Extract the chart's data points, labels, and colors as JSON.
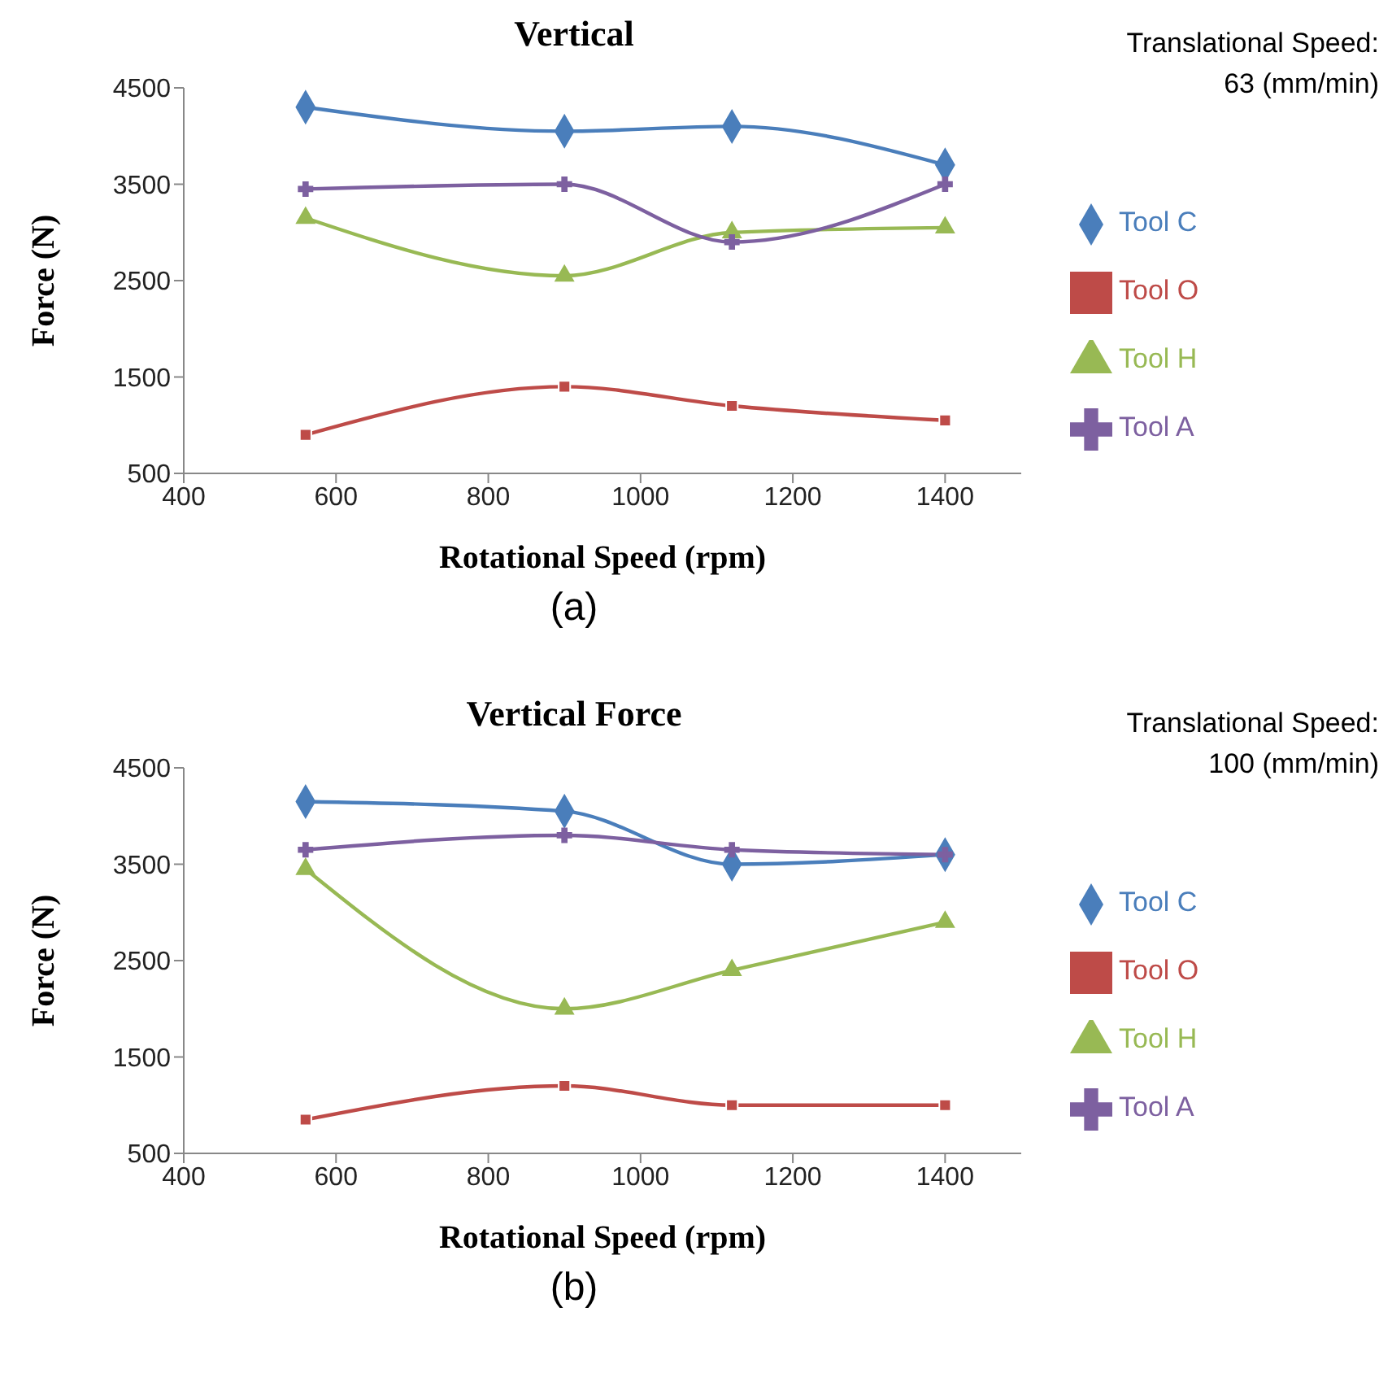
{
  "chart_data": [
    {
      "type": "line",
      "title": "Vertical",
      "xlabel": "Rotational Speed (rpm)",
      "ylabel": "Force (N)",
      "annotations": [
        "Translational Speed: 63 (mm/min)",
        "(a)"
      ],
      "x": [
        560,
        900,
        1120,
        1400
      ],
      "xlim": [
        400,
        1500
      ],
      "xticks": [
        400,
        600,
        800,
        1000,
        1200,
        1400
      ],
      "ylim": [
        500,
        4500
      ],
      "yticks": [
        500,
        1500,
        2500,
        3500,
        4500
      ],
      "grid": false,
      "legend": "right",
      "series": [
        {
          "name": "Tool C",
          "color": "#4a7ebb",
          "marker": "diamond",
          "values": [
            4300,
            4050,
            4100,
            3700
          ]
        },
        {
          "name": "Tool O",
          "color": "#be4b48",
          "marker": "square",
          "values": [
            900,
            1400,
            1200,
            1050
          ]
        },
        {
          "name": "Tool H",
          "color": "#98b954",
          "marker": "triangle",
          "values": [
            3150,
            2550,
            3000,
            3050
          ]
        },
        {
          "name": "Tool A",
          "color": "#7d60a0",
          "marker": "cross",
          "values": [
            3450,
            3500,
            2900,
            3500
          ]
        }
      ]
    },
    {
      "type": "line",
      "title": "Vertical Force",
      "xlabel": "Rotational Speed (rpm)",
      "ylabel": "Force (N)",
      "annotations": [
        "Translational Speed: 100 (mm/min)",
        "(b)"
      ],
      "x": [
        560,
        900,
        1120,
        1400
      ],
      "xlim": [
        400,
        1500
      ],
      "xticks": [
        400,
        600,
        800,
        1000,
        1200,
        1400
      ],
      "ylim": [
        500,
        4500
      ],
      "yticks": [
        500,
        1500,
        2500,
        3500,
        4500
      ],
      "grid": false,
      "legend": "right",
      "series": [
        {
          "name": "Tool C",
          "color": "#4a7ebb",
          "marker": "diamond",
          "values": [
            4150,
            4050,
            3500,
            3600
          ]
        },
        {
          "name": "Tool O",
          "color": "#be4b48",
          "marker": "square",
          "values": [
            850,
            1200,
            1000,
            1000
          ]
        },
        {
          "name": "Tool H",
          "color": "#98b954",
          "marker": "triangle",
          "values": [
            3450,
            2000,
            2400,
            2900
          ]
        },
        {
          "name": "Tool A",
          "color": "#7d60a0",
          "marker": "cross",
          "values": [
            3650,
            3800,
            3650,
            3600
          ]
        }
      ]
    }
  ]
}
